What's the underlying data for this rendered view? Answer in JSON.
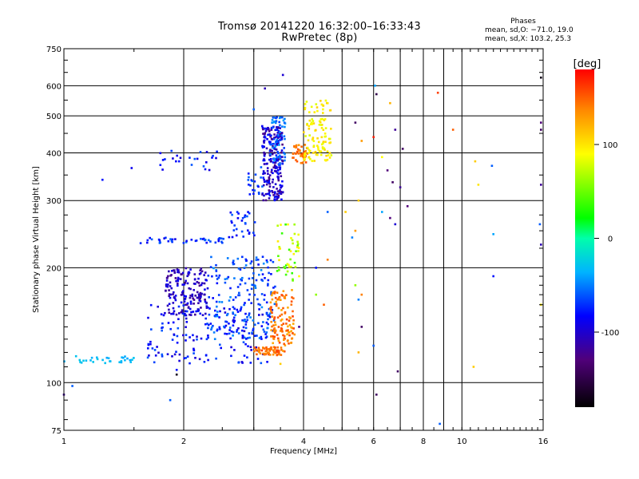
{
  "header": {
    "title": "Tromsø 20141220 16:32:00–16:33:43",
    "subtitle": "RwPretec (8p)",
    "stats_heading": "Phases",
    "stats_o": "mean, sd,O: −71.0, 19.0",
    "stats_x": "mean, sd,X: 103.2, 25.3"
  },
  "chart_data": {
    "type": "scatter",
    "title": "Tromsø 20141220 16:32:00–16:33:43",
    "subtitle": "RwPretec (8p)",
    "xlabel": "Frequency [MHz]",
    "ylabel": "Stationary phase Virtual Height [km]",
    "x_scale": "log",
    "y_scale": "log",
    "xlim": [
      1,
      16
    ],
    "ylim": [
      75,
      750
    ],
    "x_ticks": [
      1,
      2,
      4,
      6,
      8,
      10,
      16
    ],
    "x_tick_labels": [
      "1",
      "2",
      "4",
      "6",
      "8",
      "10",
      "16"
    ],
    "x_grid": [
      1,
      2,
      3,
      4,
      5,
      6,
      7,
      8,
      9,
      10,
      16
    ],
    "y_ticks": [
      75,
      100,
      200,
      300,
      400,
      500,
      600,
      750
    ],
    "y_tick_labels": [
      "75",
      "100",
      "200",
      "300",
      "400",
      "500",
      "600",
      "750"
    ],
    "y_grid": [
      100,
      200,
      300,
      400,
      500,
      600
    ],
    "grid": true,
    "colorbar": {
      "label": "[deg]",
      "range": [
        -180,
        180
      ],
      "ticks": [
        100,
        0,
        -100
      ],
      "tick_labels": [
        "100",
        "0",
        "-100"
      ]
    },
    "traces": [
      {
        "name": "",
        "f_range": [
          1.0,
          1.5
        ],
        "h_range": [
          112,
          118
        ],
        "count": 30,
        "phase": [
          -40,
          -25
        ]
      },
      {
        "name": "",
        "f_range": [
          1.62,
          3.3
        ],
        "h_range": [
          112,
          162
        ],
        "count": 170,
        "phase": [
          -105,
          -60
        ]
      },
      {
        "name": "",
        "f_range": [
          1.55,
          2.6
        ],
        "h_range": [
          232,
          240
        ],
        "count": 40,
        "phase": [
          -95,
          -55
        ]
      },
      {
        "name": "",
        "f_range": [
          2.6,
          3.05
        ],
        "h_range": [
          240,
          285
        ],
        "count": 30,
        "phase": [
          -90,
          -55
        ]
      },
      {
        "name": "",
        "f_range": [
          2.9,
          3.2
        ],
        "h_range": [
          300,
          370
        ],
        "count": 22,
        "phase": [
          -85,
          -55
        ]
      },
      {
        "name": "",
        "f_range": [
          1.7,
          2.45
        ],
        "h_range": [
          360,
          405
        ],
        "count": 25,
        "phase": [
          -100,
          -60
        ]
      },
      {
        "name": "",
        "f_range": [
          1.8,
          2.3
        ],
        "h_range": [
          150,
          200
        ],
        "count": 160,
        "phase": [
          -125,
          -85
        ]
      },
      {
        "name": "",
        "f_range": [
          2.3,
          3.4
        ],
        "h_range": [
          130,
          215
        ],
        "count": 180,
        "phase": [
          -85,
          -45
        ]
      },
      {
        "name": "",
        "f_range": [
          3.15,
          3.55
        ],
        "h_range": [
          300,
          470
        ],
        "count": 230,
        "phase": [
          -130,
          -75
        ]
      },
      {
        "name": "",
        "f_range": [
          3.3,
          3.6
        ],
        "h_range": [
          370,
          500
        ],
        "count": 60,
        "phase": [
          -70,
          -40
        ]
      },
      {
        "name": "",
        "f_range": [
          3.0,
          3.6
        ],
        "h_range": [
          118,
          124
        ],
        "count": 60,
        "phase": [
          130,
          160
        ]
      },
      {
        "name": "",
        "f_range": [
          3.3,
          3.8
        ],
        "h_range": [
          125,
          175
        ],
        "count": 120,
        "phase": [
          120,
          160
        ]
      },
      {
        "name": "",
        "f_range": [
          3.4,
          3.9
        ],
        "h_range": [
          185,
          260
        ],
        "count": 45,
        "phase": [
          30,
          100
        ]
      },
      {
        "name": "",
        "f_range": [
          3.75,
          4.1
        ],
        "h_range": [
          375,
          420
        ],
        "count": 45,
        "phase": [
          130,
          160
        ]
      },
      {
        "name": "",
        "f_range": [
          4.0,
          4.7
        ],
        "h_range": [
          380,
          550
        ],
        "count": 110,
        "phase": [
          80,
          110
        ]
      }
    ],
    "scattered_points": [
      {
        "f": 3.2,
        "h": 590,
        "phase": -110
      },
      {
        "f": 3.55,
        "h": 640,
        "phase": -100
      },
      {
        "f": 6.05,
        "h": 600,
        "phase": -40
      },
      {
        "f": 6.1,
        "h": 570,
        "phase": -150
      },
      {
        "f": 6.6,
        "h": 540,
        "phase": 120
      },
      {
        "f": 5.4,
        "h": 480,
        "phase": -140
      },
      {
        "f": 5.6,
        "h": 430,
        "phase": 130
      },
      {
        "f": 6.0,
        "h": 440,
        "phase": 170
      },
      {
        "f": 6.8,
        "h": 460,
        "phase": -120
      },
      {
        "f": 7.1,
        "h": 410,
        "phase": -140
      },
      {
        "f": 9.5,
        "h": 460,
        "phase": 150
      },
      {
        "f": 8.7,
        "h": 575,
        "phase": 160
      },
      {
        "f": 6.3,
        "h": 390,
        "phase": 90
      },
      {
        "f": 6.5,
        "h": 360,
        "phase": -130
      },
      {
        "f": 6.7,
        "h": 335,
        "phase": -140
      },
      {
        "f": 7.0,
        "h": 325,
        "phase": -120
      },
      {
        "f": 5.5,
        "h": 300,
        "phase": 110
      },
      {
        "f": 6.3,
        "h": 280,
        "phase": -40
      },
      {
        "f": 6.6,
        "h": 270,
        "phase": -130
      },
      {
        "f": 6.8,
        "h": 260,
        "phase": -100
      },
      {
        "f": 7.3,
        "h": 290,
        "phase": -130
      },
      {
        "f": 10.8,
        "h": 380,
        "phase": 110
      },
      {
        "f": 11.9,
        "h": 370,
        "phase": -60
      },
      {
        "f": 11.0,
        "h": 330,
        "phase": 100
      },
      {
        "f": 12.0,
        "h": 245,
        "phase": -40
      },
      {
        "f": 15.8,
        "h": 630,
        "phase": -170
      },
      {
        "f": 15.8,
        "h": 480,
        "phase": -130
      },
      {
        "f": 15.8,
        "h": 460,
        "phase": -140
      },
      {
        "f": 15.8,
        "h": 330,
        "phase": -120
      },
      {
        "f": 15.7,
        "h": 260,
        "phase": -60
      },
      {
        "f": 15.8,
        "h": 230,
        "phase": -110
      },
      {
        "f": 15.8,
        "h": 160,
        "phase": 100
      },
      {
        "f": 12.0,
        "h": 190,
        "phase": -80
      },
      {
        "f": 5.4,
        "h": 180,
        "phase": 60
      },
      {
        "f": 5.6,
        "h": 170,
        "phase": 140
      },
      {
        "f": 5.5,
        "h": 165,
        "phase": -50
      },
      {
        "f": 4.5,
        "h": 160,
        "phase": 150
      },
      {
        "f": 5.6,
        "h": 140,
        "phase": -140
      },
      {
        "f": 5.5,
        "h": 120,
        "phase": 120
      },
      {
        "f": 6.0,
        "h": 125,
        "phase": -60
      },
      {
        "f": 6.9,
        "h": 107,
        "phase": -140
      },
      {
        "f": 6.1,
        "h": 93,
        "phase": -140
      },
      {
        "f": 10.7,
        "h": 110,
        "phase": 110
      },
      {
        "f": 8.8,
        "h": 78,
        "phase": -60
      },
      {
        "f": 1.0,
        "h": 93,
        "phase": -120
      },
      {
        "f": 1.05,
        "h": 98,
        "phase": -60
      },
      {
        "f": 1.25,
        "h": 340,
        "phase": -80
      },
      {
        "f": 1.48,
        "h": 365,
        "phase": -90
      },
      {
        "f": 1.85,
        "h": 90,
        "phase": -60
      },
      {
        "f": 1.92,
        "h": 105,
        "phase": -170
      },
      {
        "f": 1.92,
        "h": 108,
        "phase": -80
      },
      {
        "f": 3.5,
        "h": 112,
        "phase": 110
      },
      {
        "f": 3.9,
        "h": 140,
        "phase": -120
      },
      {
        "f": 4.3,
        "h": 170,
        "phase": 60
      },
      {
        "f": 4.6,
        "h": 280,
        "phase": -60
      },
      {
        "f": 4.6,
        "h": 210,
        "phase": 140
      },
      {
        "f": 4.3,
        "h": 200,
        "phase": -80
      },
      {
        "f": 5.4,
        "h": 250,
        "phase": 130
      },
      {
        "f": 5.1,
        "h": 280,
        "phase": 110
      },
      {
        "f": 3.9,
        "h": 190,
        "phase": 90
      },
      {
        "f": 3.0,
        "h": 520,
        "phase": -60
      },
      {
        "f": 3.15,
        "h": 470,
        "phase": -90
      },
      {
        "f": 5.3,
        "h": 240,
        "phase": -50
      }
    ]
  }
}
